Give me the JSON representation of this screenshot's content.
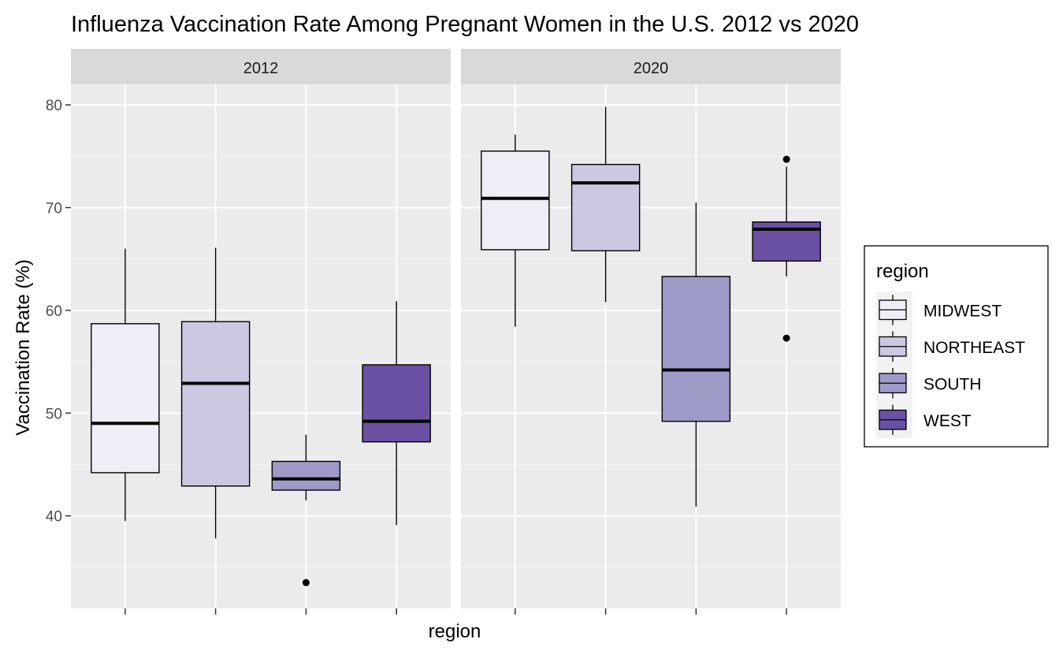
{
  "chart_data": {
    "type": "box",
    "title": "Influenza Vaccination Rate Among Pregnant Women in the U.S. 2012 vs 2020",
    "xlabel": "region",
    "ylabel": "Vaccination Rate (%)",
    "ylim": [
      31,
      82
    ],
    "y_ticks": [
      40,
      50,
      60,
      70,
      80
    ],
    "grid": true,
    "facets": [
      "2012",
      "2020"
    ],
    "categories": [
      "MIDWEST",
      "NORTHEAST",
      "SOUTH",
      "WEST"
    ],
    "legend": {
      "title": "region",
      "placement": "right",
      "entries": [
        "MIDWEST",
        "NORTHEAST",
        "SOUTH",
        "WEST"
      ]
    },
    "colors": {
      "MIDWEST": "#efedf5",
      "NORTHEAST": "#cbc9e2",
      "SOUTH": "#9e9ac8",
      "WEST": "#6a51a3"
    },
    "panels": [
      {
        "facet": "2012",
        "boxes": [
          {
            "category": "MIDWEST",
            "lower_whisker": 39.5,
            "q1": 44.2,
            "median": 49.0,
            "q3": 58.7,
            "upper_whisker": 66.0,
            "outliers": []
          },
          {
            "category": "NORTHEAST",
            "lower_whisker": 37.8,
            "q1": 42.9,
            "median": 52.9,
            "q3": 58.9,
            "upper_whisker": 66.1,
            "outliers": []
          },
          {
            "category": "SOUTH",
            "lower_whisker": 41.5,
            "q1": 42.5,
            "median": 43.6,
            "q3": 45.3,
            "upper_whisker": 47.9,
            "outliers": [
              33.5
            ]
          },
          {
            "category": "WEST",
            "lower_whisker": 39.1,
            "q1": 47.2,
            "median": 49.2,
            "q3": 54.7,
            "upper_whisker": 60.9,
            "outliers": []
          }
        ]
      },
      {
        "facet": "2020",
        "boxes": [
          {
            "category": "MIDWEST",
            "lower_whisker": 58.4,
            "q1": 65.9,
            "median": 70.9,
            "q3": 75.5,
            "upper_whisker": 77.1,
            "outliers": []
          },
          {
            "category": "NORTHEAST",
            "lower_whisker": 60.8,
            "q1": 65.8,
            "median": 72.4,
            "q3": 74.2,
            "upper_whisker": 79.8,
            "outliers": []
          },
          {
            "category": "SOUTH",
            "lower_whisker": 40.9,
            "q1": 49.2,
            "median": 54.2,
            "q3": 63.3,
            "upper_whisker": 70.5,
            "outliers": []
          },
          {
            "category": "WEST",
            "lower_whisker": 63.3,
            "q1": 64.8,
            "median": 67.9,
            "q3": 68.6,
            "upper_whisker": 74.0,
            "outliers": [
              74.7,
              57.3
            ]
          }
        ]
      }
    ]
  }
}
